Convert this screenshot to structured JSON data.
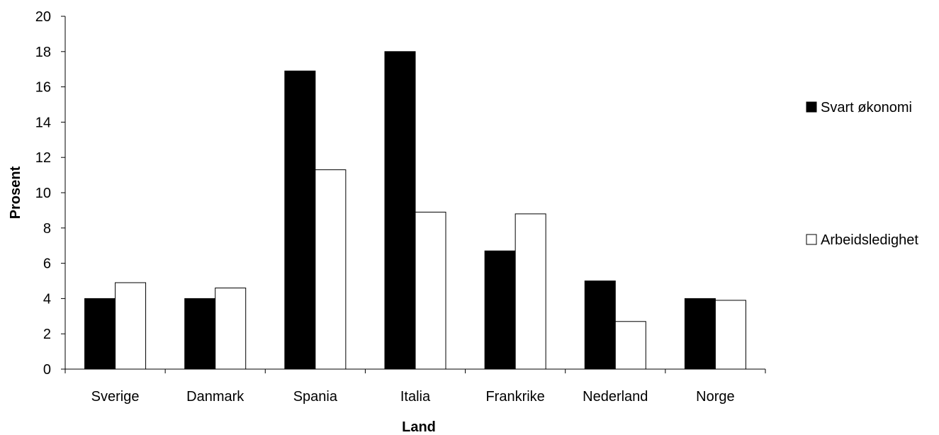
{
  "chart_data": {
    "type": "bar",
    "title": "",
    "xlabel": "Land",
    "ylabel": "Prosent",
    "ylim": [
      0,
      20
    ],
    "yticks": [
      0,
      2,
      4,
      6,
      8,
      10,
      12,
      14,
      16,
      18,
      20
    ],
    "grid": false,
    "legend_position": "right",
    "categories": [
      "Sverige",
      "Danmark",
      "Spania",
      "Italia",
      "Frankrike",
      "Nederland",
      "Norge"
    ],
    "series": [
      {
        "name": "Svart økonomi",
        "color": "#000000",
        "values": [
          4.0,
          4.0,
          16.9,
          18.0,
          6.7,
          5.0,
          4.0
        ]
      },
      {
        "name": "Arbeidsledighet",
        "color": "#ffffff",
        "values": [
          4.9,
          4.6,
          11.3,
          8.9,
          8.8,
          2.7,
          3.9
        ]
      }
    ]
  }
}
